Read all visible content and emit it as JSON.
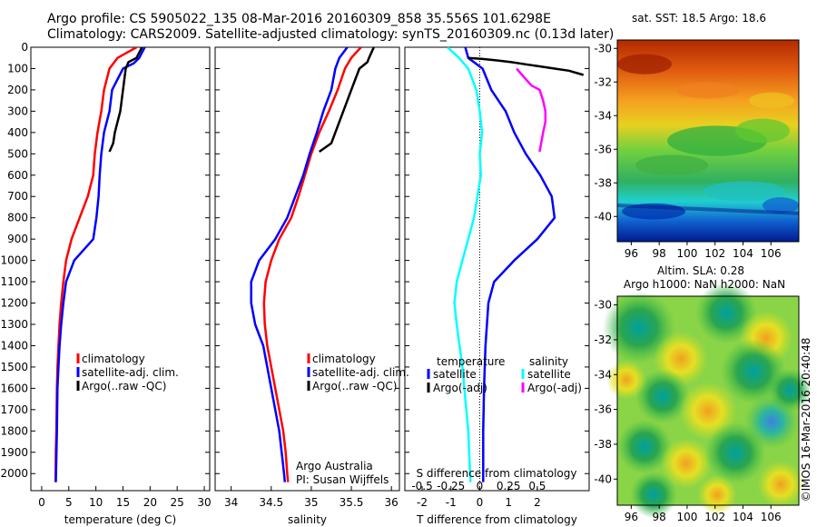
{
  "header": {
    "line1": "Argo profile: CS 5905022_135 08-Mar-2016 20160309_858 35.556S 101.6298E",
    "line2": "Climatology: CARS2009. Satellite-adjusted climatology: synTS_20160309.nc (0.13d later)"
  },
  "colors": {
    "climatology": "#ff0000",
    "satellite": "#0000ff",
    "argo": "#000000",
    "satellite_salinity": "#00ffff",
    "argo_salinity": "#ff00ff"
  },
  "depth_axis": {
    "ticks": [
      "0",
      "100",
      "200",
      "300",
      "400",
      "500",
      "600",
      "700",
      "800",
      "900",
      "1000",
      "1100",
      "1200",
      "1300",
      "1400",
      "1500",
      "1600",
      "1700",
      "1800",
      "1900",
      "2000"
    ]
  },
  "chart_data": [
    {
      "type": "line",
      "panel": "temperature",
      "xlabel": "temperature (deg C)",
      "xlim": [
        -2,
        31
      ],
      "ylim": [
        2080,
        0
      ],
      "xticks": [
        "0",
        "5",
        "10",
        "15",
        "20",
        "25",
        "30"
      ],
      "legend": [
        "climatology",
        "satellite-adj. clim.",
        "Argo(..raw -QC)"
      ],
      "series": [
        {
          "name": "climatology",
          "x": [
            17.5,
            14,
            12.5,
            11.5,
            11,
            10.3,
            9.8,
            9.5,
            8.5,
            7,
            5.5,
            4.5,
            4,
            3.6,
            3.3,
            3.1,
            2.9,
            2.8,
            2.7,
            2.6,
            2.55
          ],
          "y": [
            0,
            50,
            100,
            200,
            300,
            400,
            500,
            600,
            700,
            800,
            900,
            1000,
            1100,
            1200,
            1300,
            1400,
            1500,
            1600,
            1800,
            1900,
            2040
          ]
        },
        {
          "name": "satellite-adj. clim.",
          "x": [
            19,
            18,
            17,
            15,
            13,
            12.5,
            11.5,
            11,
            10.7,
            10.5,
            10.1,
            9.5,
            6,
            4.5,
            4,
            3.6,
            3.3,
            3.1,
            2.9,
            2.8,
            2.6
          ],
          "y": [
            0,
            50,
            75,
            100,
            200,
            300,
            400,
            500,
            600,
            700,
            800,
            900,
            1000,
            1100,
            1200,
            1300,
            1400,
            1500,
            1600,
            1800,
            2040
          ]
        },
        {
          "name": "Argo(..raw -QC)",
          "x": [
            18.5,
            17.5,
            16,
            15.5,
            15,
            14.5,
            14,
            13.5,
            13.2,
            12.5
          ],
          "y": [
            0,
            50,
            70,
            100,
            200,
            300,
            350,
            400,
            450,
            490
          ]
        }
      ]
    },
    {
      "type": "line",
      "panel": "salinity",
      "xlabel": "salinity",
      "xlim": [
        33.8,
        36.1
      ],
      "ylim": [
        2080,
        0
      ],
      "xticks": [
        "34",
        "34.5",
        "35",
        "35.5",
        "36"
      ],
      "legend": [
        "climatology",
        "satellite-adj. clim.",
        "Argo(..raw -QC)"
      ],
      "annotation": [
        "Argo Australia",
        "PI: Susan Wijffels"
      ],
      "series": [
        {
          "name": "climatology",
          "x": [
            35.62,
            35.5,
            35.42,
            35.33,
            35.22,
            35.1,
            35.0,
            34.92,
            34.84,
            34.75,
            34.6,
            34.5,
            34.43,
            34.41,
            34.42,
            34.45,
            34.5,
            34.55,
            34.6,
            34.65,
            34.68,
            34.7,
            34.71
          ],
          "y": [
            0,
            50,
            100,
            200,
            300,
            400,
            500,
            600,
            700,
            800,
            900,
            1000,
            1100,
            1200,
            1300,
            1400,
            1500,
            1600,
            1700,
            1800,
            1900,
            2000,
            2040
          ]
        },
        {
          "name": "satellite-adj. clim.",
          "x": [
            35.45,
            35.35,
            35.3,
            35.25,
            35.15,
            35.07,
            34.98,
            34.9,
            34.8,
            34.7,
            34.55,
            34.35,
            34.25,
            34.25,
            34.3,
            34.4,
            34.45,
            34.5,
            34.55,
            34.6,
            34.63,
            34.66,
            34.67
          ],
          "y": [
            0,
            50,
            100,
            200,
            300,
            400,
            500,
            600,
            700,
            800,
            900,
            1000,
            1100,
            1200,
            1300,
            1400,
            1500,
            1600,
            1700,
            1800,
            1900,
            2000,
            2040
          ]
        },
        {
          "name": "Argo(..raw -QC)",
          "x": [
            35.78,
            35.72,
            35.7,
            35.6,
            35.5,
            35.4,
            35.3,
            35.25,
            35.1
          ],
          "y": [
            0,
            50,
            70,
            100,
            200,
            300,
            400,
            450,
            490
          ]
        }
      ]
    },
    {
      "type": "line",
      "panel": "difference",
      "xlabel": "T difference from climatology",
      "xlabel_top": "S difference from climatology",
      "xlim": [
        -2.6,
        3.8
      ],
      "ylim": [
        2080,
        0
      ],
      "xticks": [
        "-2",
        "-1",
        "0",
        "1",
        "2"
      ],
      "xticks_salinity": [
        "-0.5",
        "-0.25",
        "0",
        "0.25",
        "0.5"
      ],
      "legend_headers": [
        "temperature",
        "salinity"
      ],
      "legend": [
        "satellite",
        "Argo(-adj)",
        "satellite",
        "Argo(-adj)"
      ],
      "series": [
        {
          "name": "satellite",
          "x": [
            -0.5,
            -0.4,
            0.1,
            0.4,
            0.9,
            1.2,
            1.6,
            2.1,
            2.5,
            2.6,
            2.0,
            1.2,
            0.5,
            0.3,
            0.25,
            0.2,
            0.15,
            0.12,
            0.12
          ],
          "y": [
            0,
            50,
            100,
            200,
            300,
            400,
            500,
            600,
            700,
            800,
            900,
            1000,
            1100,
            1200,
            1300,
            1400,
            1600,
            1800,
            2040
          ]
        },
        {
          "name": "Argo(-adj)",
          "x": [
            -0.4,
            0.1,
            0.6,
            1.1,
            1.6,
            2.1,
            2.6,
            3.1,
            3.6
          ],
          "y": [
            50,
            55,
            62,
            70,
            80,
            90,
            100,
            110,
            130
          ]
        },
        {
          "name": "satellite",
          "x": [
            -0.28,
            -0.18,
            -0.1,
            -0.03,
            0,
            0.02,
            0.0,
            0.01,
            -0.02,
            -0.05,
            -0.1,
            -0.15,
            -0.2,
            -0.22,
            -0.2,
            -0.15,
            -0.1,
            -0.08
          ],
          "y": [
            0,
            50,
            100,
            200,
            300,
            400,
            500,
            600,
            700,
            800,
            900,
            1000,
            1100,
            1200,
            1300,
            1500,
            1800,
            2040
          ]
        },
        {
          "name": "Argo(-adj)",
          "x": [
            0.32,
            0.4,
            0.45,
            0.52,
            0.55,
            0.57,
            0.57,
            0.55,
            0.52
          ],
          "y": [
            100,
            150,
            180,
            200,
            250,
            300,
            350,
            400,
            490
          ]
        }
      ]
    },
    {
      "type": "heatmap",
      "panel": "sst_map",
      "title": "sat. SST: 18.5 Argo: 18.6",
      "xticks": [
        "96",
        "98",
        "100",
        "102",
        "104",
        "106"
      ],
      "yticks": [
        "-30",
        "-32",
        "-34",
        "-36",
        "-38",
        "-40"
      ],
      "xlim": [
        95,
        108
      ],
      "ylim": [
        -41.5,
        -29.5
      ]
    },
    {
      "type": "heatmap",
      "panel": "sla_map",
      "title": "Altim. SLA: 0.28",
      "subtitle": "Argo h1000: NaN h2000: NaN",
      "xticks": [
        "96",
        "98",
        "100",
        "102",
        "104",
        "106"
      ],
      "yticks": [
        "-30",
        "-32",
        "-34",
        "-36",
        "-38",
        "-40"
      ],
      "xlim": [
        95,
        108
      ],
      "ylim": [
        -41.5,
        -29.5
      ]
    }
  ],
  "footer": {
    "credit": "©IMOS 16-Mar-2016 20:40:48"
  }
}
